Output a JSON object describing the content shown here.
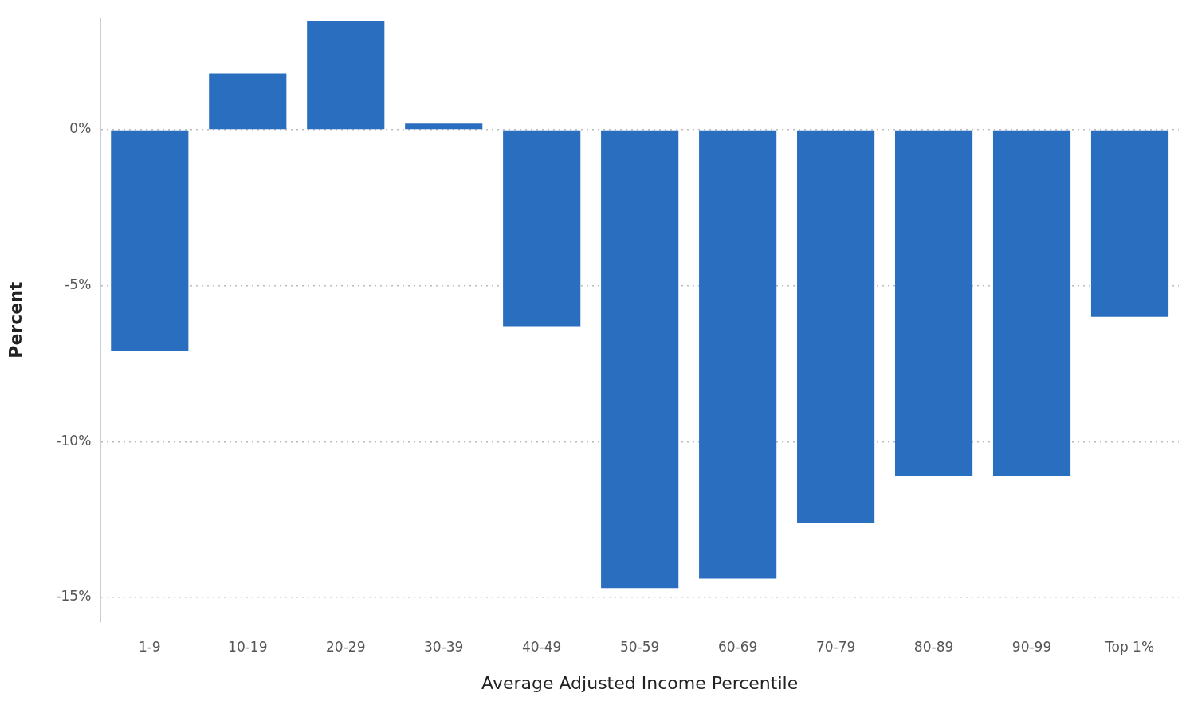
{
  "chart_data": {
    "type": "bar",
    "x_label": "Average Adjusted Income Percentile",
    "y_label": "Percent",
    "categories": [
      "1-9",
      "10-19",
      "20-29",
      "30-39",
      "40-49",
      "50-59",
      "60-69",
      "70-79",
      "80-89",
      "90-99",
      "Top 1%"
    ],
    "values": [
      -7.1,
      1.8,
      3.5,
      0.2,
      -6.3,
      -14.7,
      -14.4,
      -12.6,
      -11.1,
      -11.1,
      -6.0
    ],
    "color": "#2a6ebf",
    "ylim": [
      -15.8,
      3.6
    ],
    "yticks": [
      {
        "value": -15,
        "label": "-15%"
      },
      {
        "value": -10,
        "label": "-10%"
      },
      {
        "value": -5,
        "label": "-5%"
      },
      {
        "value": 0,
        "label": "0%"
      }
    ],
    "grid": true
  }
}
